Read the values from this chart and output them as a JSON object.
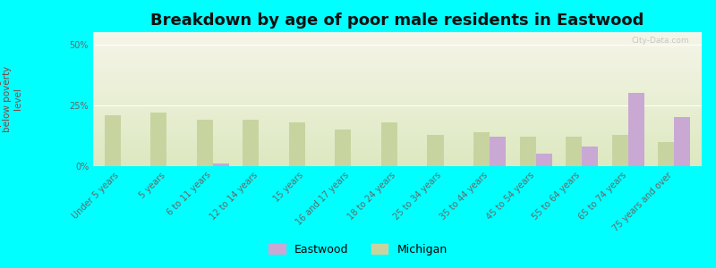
{
  "title": "Breakdown by age of poor male residents in Eastwood",
  "ylabel": "percentage\nbelow poverty\nlevel",
  "categories": [
    "Under 5 years",
    "5 years",
    "6 to 11 years",
    "12 to 14 years",
    "15 years",
    "16 and 17 years",
    "18 to 24 years",
    "25 to 34 years",
    "35 to 44 years",
    "45 to 54 years",
    "55 to 64 years",
    "65 to 74 years",
    "75 years and over"
  ],
  "eastwood_values": [
    0,
    0,
    1.0,
    0,
    0,
    0,
    0,
    0,
    12.0,
    5.0,
    8.0,
    30.0,
    20.0
  ],
  "michigan_values": [
    21.0,
    22.0,
    19.0,
    19.0,
    18.0,
    15.0,
    18.0,
    13.0,
    14.0,
    12.0,
    12.0,
    13.0,
    10.0
  ],
  "eastwood_color": "#c9a8d4",
  "michigan_color": "#c8d4a0",
  "background_color": "#00ffff",
  "grad_top": "#f5f5e8",
  "grad_bottom": "#dce8c0",
  "ylim": [
    0,
    55
  ],
  "yticks": [
    0,
    25,
    50
  ],
  "ytick_labels": [
    "0%",
    "25%",
    "50%"
  ],
  "bar_width": 0.35,
  "title_fontsize": 13,
  "ylabel_fontsize": 7.5,
  "tick_fontsize": 7,
  "legend_fontsize": 9,
  "watermark": "City-Data.com"
}
